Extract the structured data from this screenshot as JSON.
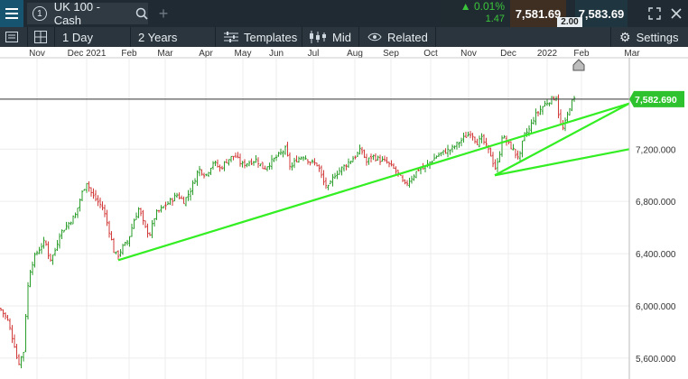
{
  "top_bar": {
    "menu_icon": "hamburger-menu-icon",
    "tab_number": "1",
    "instrument": "UK 100 - Cash",
    "search_icon": "search-icon",
    "add_icon": "plus-icon",
    "change_pct": "0.01%",
    "change_pts": "1.47",
    "bid": "7,581.69",
    "ask": "7,583.69",
    "spread": "2.00",
    "expand_icon": "expand-icon",
    "close_icon": "close-icon"
  },
  "toolbar": {
    "interval": "1 Day",
    "range": "2 Years",
    "templates": "Templates",
    "price_type": "Mid",
    "related": "Related",
    "settings": "Settings"
  },
  "colors": {
    "up": "#2a9d2a",
    "down": "#d23a3a",
    "trend": "#33ee22",
    "price_tag": "#2ec32e"
  },
  "chart_data": {
    "type": "bar",
    "style": "ohlc",
    "title": "",
    "x_tick_labels": [
      "Nov",
      "Dec 2021",
      "Feb",
      "Mar",
      "Apr",
      "May",
      "Jun",
      "Jul",
      "Aug",
      "Sep",
      "Oct",
      "Nov",
      "Dec",
      "2022",
      "Feb",
      "Mar"
    ],
    "y_ticks": [
      5600,
      6000,
      6400,
      6800,
      7200
    ],
    "y_tick_labels": [
      "5,600.000",
      "6,000.000",
      "6,400.000",
      "6,800.000",
      "7,200.000"
    ],
    "ylim": [
      5440,
      7900
    ],
    "current_price": 7582.69,
    "current_price_label": "7,582.690",
    "approx_close_path": [
      [
        0,
        5980
      ],
      [
        8,
        5900
      ],
      [
        16,
        5700
      ],
      [
        20,
        5550
      ],
      [
        26,
        5650
      ],
      [
        30,
        6100
      ],
      [
        34,
        6300
      ],
      [
        40,
        6400
      ],
      [
        45,
        6450
      ],
      [
        50,
        6500
      ],
      [
        55,
        6350
      ],
      [
        60,
        6400
      ],
      [
        66,
        6550
      ],
      [
        72,
        6600
      ],
      [
        78,
        6650
      ],
      [
        84,
        6700
      ],
      [
        90,
        6850
      ],
      [
        96,
        6950
      ],
      [
        102,
        6850
      ],
      [
        108,
        6800
      ],
      [
        114,
        6750
      ],
      [
        118,
        6650
      ],
      [
        122,
        6550
      ],
      [
        126,
        6420
      ],
      [
        130,
        6380
      ],
      [
        136,
        6450
      ],
      [
        142,
        6500
      ],
      [
        148,
        6650
      ],
      [
        154,
        6750
      ],
      [
        160,
        6600
      ],
      [
        166,
        6550
      ],
      [
        172,
        6700
      ],
      [
        180,
        6750
      ],
      [
        188,
        6800
      ],
      [
        196,
        6850
      ],
      [
        204,
        6800
      ],
      [
        212,
        6900
      ],
      [
        220,
        7050
      ],
      [
        228,
        7000
      ],
      [
        236,
        7100
      ],
      [
        244,
        7050
      ],
      [
        252,
        7120
      ],
      [
        260,
        7150
      ],
      [
        268,
        7080
      ],
      [
        276,
        7100
      ],
      [
        284,
        7120
      ],
      [
        292,
        7050
      ],
      [
        300,
        7100
      ],
      [
        308,
        7150
      ],
      [
        316,
        7200
      ],
      [
        322,
        7050
      ],
      [
        328,
        7120
      ],
      [
        336,
        7150
      ],
      [
        344,
        7100
      ],
      [
        352,
        7080
      ],
      [
        358,
        6950
      ],
      [
        364,
        6900
      ],
      [
        370,
        7000
      ],
      [
        378,
        7050
      ],
      [
        386,
        7100
      ],
      [
        394,
        7150
      ],
      [
        400,
        7200
      ],
      [
        406,
        7100
      ],
      [
        412,
        7150
      ],
      [
        420,
        7120
      ],
      [
        428,
        7100
      ],
      [
        436,
        7050
      ],
      [
        442,
        7000
      ],
      [
        448,
        6920
      ],
      [
        452,
        6950
      ],
      [
        458,
        7000
      ],
      [
        464,
        7050
      ],
      [
        470,
        7050
      ],
      [
        476,
        7100
      ],
      [
        484,
        7150
      ],
      [
        492,
        7180
      ],
      [
        500,
        7200
      ],
      [
        508,
        7250
      ],
      [
        516,
        7300
      ],
      [
        522,
        7330
      ],
      [
        528,
        7250
      ],
      [
        534,
        7280
      ],
      [
        540,
        7200
      ],
      [
        544,
        7150
      ],
      [
        548,
        7050
      ],
      [
        552,
        7100
      ],
      [
        556,
        7300
      ],
      [
        562,
        7250
      ],
      [
        568,
        7200
      ],
      [
        572,
        7150
      ],
      [
        576,
        7150
      ],
      [
        580,
        7300
      ],
      [
        586,
        7350
      ],
      [
        592,
        7450
      ],
      [
        598,
        7500
      ],
      [
        604,
        7550
      ],
      [
        610,
        7580
      ],
      [
        616,
        7600
      ],
      [
        620,
        7400
      ],
      [
        624,
        7350
      ],
      [
        628,
        7450
      ],
      [
        632,
        7550
      ],
      [
        636,
        7580
      ]
    ],
    "trendlines": [
      {
        "from": [
          "Feb 2021",
          6350
        ],
        "to": [
          "Mar 2022",
          7550
        ]
      },
      {
        "from": [
          "Nov 2021",
          7000
        ],
        "to": [
          "Mar 2022",
          7200
        ]
      },
      {
        "from": [
          "Nov 2021",
          7000
        ],
        "to": [
          "Mar 2022",
          7550
        ]
      }
    ],
    "grid": true
  }
}
